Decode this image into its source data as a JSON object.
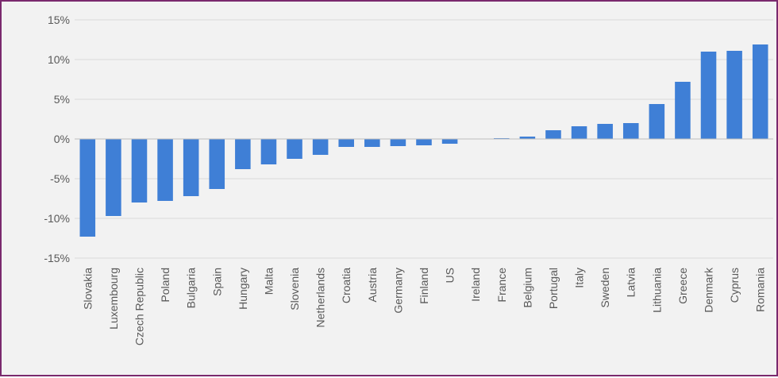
{
  "chart_data": {
    "type": "bar",
    "title": "",
    "xlabel": "",
    "ylabel": "",
    "ylim": [
      -15,
      15
    ],
    "y_ticks": [
      15,
      10,
      5,
      0,
      -5,
      -10,
      -15
    ],
    "y_tick_labels": [
      "15%",
      "10%",
      "5%",
      "0%",
      "-5%",
      "-10%",
      "-15%"
    ],
    "grid": true,
    "legend": "none",
    "bar_color": "#3f7fd6",
    "categories": [
      "Slovakia",
      "Luxembourg",
      "Czech Republic",
      "Poland",
      "Bulgaria",
      "Spain",
      "Hungary",
      "Malta",
      "Slovenia",
      "Netherlands",
      "Croatia",
      "Austria",
      "Germany",
      "Finland",
      "US",
      "Ireland",
      "France",
      "Belgium",
      "Portugal",
      "Italy",
      "Sweden",
      "Latvia",
      "Lithuania",
      "Greece",
      "Denmark",
      "Cyprus",
      "Romania"
    ],
    "values": [
      -12.3,
      -9.7,
      -8.0,
      -7.8,
      -7.2,
      -6.3,
      -3.8,
      -3.2,
      -2.5,
      -2.0,
      -1.0,
      -1.0,
      -0.9,
      -0.8,
      -0.6,
      0.0,
      0.1,
      0.3,
      1.1,
      1.6,
      1.9,
      2.0,
      4.4,
      7.2,
      11.0,
      11.1,
      11.9
    ]
  }
}
